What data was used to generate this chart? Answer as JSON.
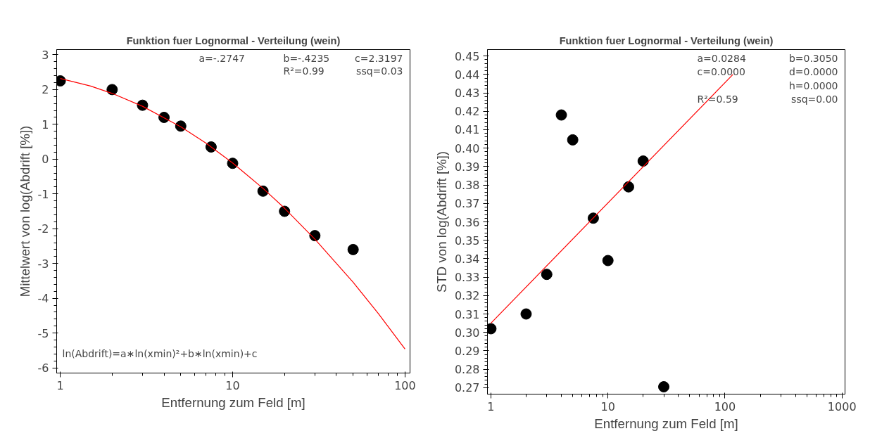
{
  "chart_data": [
    {
      "type": "scatter",
      "title": "Funktion fuer Lognormal - Verteilung (wein)",
      "xlabel": "Entfernung zum Feld [m]",
      "ylabel": "Mittelwert von log(Abdrift [%])",
      "log": "x",
      "xlim": [
        0.953,
        106.9
      ],
      "xticks": [
        1,
        10,
        100
      ],
      "ylim": [
        -6.15,
        3.15
      ],
      "yticks": [
        -6,
        -5,
        -4,
        -3,
        -2,
        -1,
        0,
        1,
        2,
        3
      ],
      "marker": "circle",
      "annotations": [
        "a=-.2747",
        "b=-.4235",
        "c=2.3197",
        "R²=0.99",
        "ssq=0.03",
        "ln(Abdrift)=a∗ln(xmin)²+b∗ln(xmin)+c"
      ],
      "series": [
        {
          "color": "#000000",
          "x": [
            1,
            2,
            3,
            4,
            5,
            7.5,
            10,
            15,
            20,
            30,
            50
          ],
          "values": [
            2.25,
            2.0,
            1.55,
            1.2,
            0.95,
            0.35,
            -0.12,
            -0.92,
            -1.5,
            -2.2,
            -2.6
          ]
        },
        {
          "type": "line",
          "color": "#ff0000",
          "marker": "none",
          "x": [
            1,
            1.5,
            2,
            3,
            5,
            7,
            10,
            15,
            20,
            30,
            50,
            70,
            100
          ],
          "values": [
            2.32,
            2.1,
            1.89,
            1.52,
            0.93,
            0.46,
            -0.11,
            -0.84,
            -1.41,
            -2.3,
            -3.54,
            -4.44,
            -5.46
          ]
        }
      ]
    },
    {
      "type": "scatter",
      "title": "Funktion fuer Lognormal - Verteilung (wein)",
      "xlabel": "Entfernung zum Feld [m]",
      "ylabel": "STD von log(Abdrift [%])",
      "log": "x",
      "xlim": [
        0.934,
        1061
      ],
      "xticks": [
        1,
        10,
        100,
        1000
      ],
      "ylim": [
        0.2665,
        0.4535
      ],
      "yticks": [
        0.27,
        0.28,
        0.29,
        {
          "value": 0.3,
          "label": "0.30"
        },
        0.31,
        0.32,
        0.33,
        0.34,
        0.35,
        0.36,
        0.37,
        0.38,
        0.39,
        {
          "value": 0.4,
          "label": "0.40"
        },
        0.41,
        0.42,
        0.43,
        0.44,
        0.45
      ],
      "marker": "circle",
      "annotations": [
        "a=0.0284",
        "b=0.3050",
        "c=0.0000",
        "d=0.0000",
        "h=0.0000",
        "R²=0.59",
        "ssq=0.00"
      ],
      "series": [
        {
          "color": "#000000",
          "x": [
            1,
            2,
            3,
            4,
            5,
            7.5,
            10,
            15,
            20,
            30
          ],
          "values": [
            0.302,
            0.31,
            0.3315,
            0.418,
            0.4045,
            0.362,
            0.339,
            0.379,
            0.393,
            0.2705
          ]
        },
        {
          "type": "line",
          "color": "#ff0000",
          "marker": "none",
          "x": [
            1,
            117
          ],
          "values": [
            0.305,
            0.44
          ]
        }
      ]
    }
  ]
}
